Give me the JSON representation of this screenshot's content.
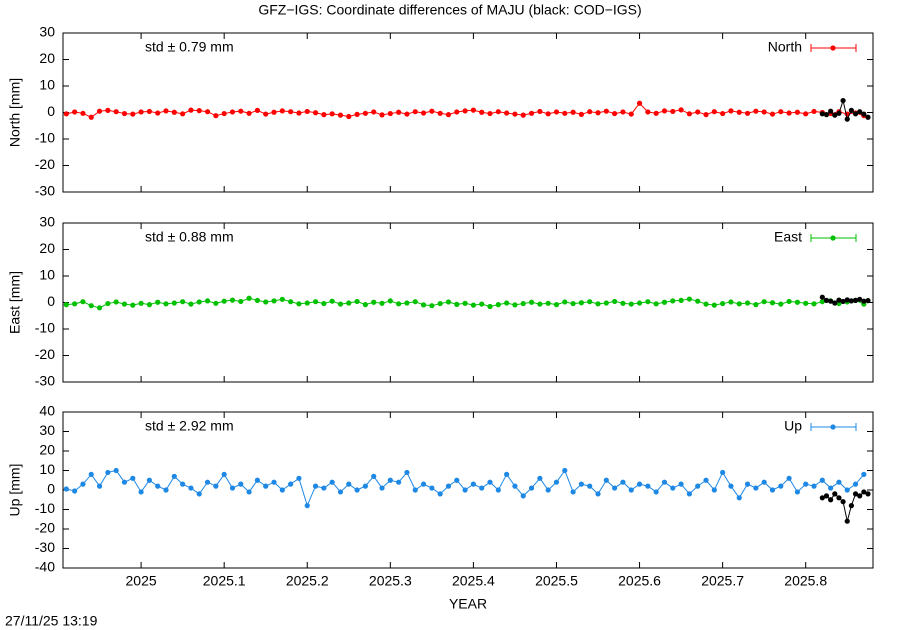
{
  "title": "GFZ−IGS: Coordinate differences of MAJU (black: COD−IGS)",
  "footer": "27/11/25 13:19",
  "chart_data": [
    {
      "type": "line",
      "ylabel": "North [mm]",
      "annotation": "std ± 0.79 mm",
      "xlim": [
        2024.906,
        2025.881
      ],
      "xticks": [
        2025,
        2025.1,
        2025.2,
        2025.3,
        2025.4,
        2025.5,
        2025.6,
        2025.7,
        2025.8
      ],
      "show_xtick_labels": false,
      "ylim": [
        -30,
        30
      ],
      "yticks": [
        -30,
        -20,
        -10,
        0,
        10,
        20,
        30
      ],
      "x": [
        2024.91,
        2024.92,
        2024.93,
        2024.94,
        2024.95,
        2024.96,
        2024.97,
        2024.98,
        2024.99,
        2025,
        2025.01,
        2025.02,
        2025.03,
        2025.04,
        2025.05,
        2025.06,
        2025.07,
        2025.08,
        2025.09,
        2025.1,
        2025.11,
        2025.12,
        2025.13,
        2025.14,
        2025.15,
        2025.16,
        2025.17,
        2025.18,
        2025.19,
        2025.2,
        2025.21,
        2025.22,
        2025.23,
        2025.24,
        2025.25,
        2025.26,
        2025.27,
        2025.28,
        2025.29,
        2025.3,
        2025.31,
        2025.32,
        2025.33,
        2025.34,
        2025.35,
        2025.36,
        2025.37,
        2025.38,
        2025.39,
        2025.4,
        2025.41,
        2025.42,
        2025.43,
        2025.44,
        2025.45,
        2025.46,
        2025.47,
        2025.48,
        2025.49,
        2025.5,
        2025.51,
        2025.52,
        2025.53,
        2025.54,
        2025.55,
        2025.56,
        2025.57,
        2025.58,
        2025.59,
        2025.6,
        2025.61,
        2025.62,
        2025.63,
        2025.64,
        2025.65,
        2025.66,
        2025.67,
        2025.68,
        2025.69,
        2025.7,
        2025.71,
        2025.72,
        2025.73,
        2025.74,
        2025.75,
        2025.76,
        2025.77,
        2025.78,
        2025.79,
        2025.8,
        2025.81,
        2025.82,
        2025.83,
        2025.84,
        2025.85,
        2025.86,
        2025.87
      ],
      "series": [
        {
          "name": "North",
          "color": "#ff0000",
          "values": [
            -0.5,
            0.2,
            -0.3,
            -1.8,
            0.5,
            0.8,
            0.3,
            -0.4,
            -0.6,
            0.2,
            0.4,
            -0.2,
            0.6,
            0.1,
            -0.5,
            0.9,
            0.7,
            0.3,
            -1.2,
            -0.4,
            0.2,
            0.5,
            -0.3,
            0.8,
            -0.6,
            0.1,
            0.6,
            0.3,
            -0.2,
            0.4,
            -0.1,
            -0.8,
            -0.5,
            -1.0,
            -1.5,
            -0.7,
            -0.3,
            0.2,
            -0.9,
            -0.4,
            0.1,
            -0.6,
            0.3,
            -0.2,
            0.5,
            -0.3,
            -0.8,
            0.2,
            0.6,
            0.9,
            0.1,
            -0.4,
            0.3,
            -0.2,
            -0.6,
            -1.0,
            -0.3,
            0.4,
            -0.5,
            0.2,
            -0.3,
            0.1,
            -0.7,
            0.3,
            -0.1,
            0.5,
            -0.4,
            0.2,
            -0.6,
            3.5,
            0.2,
            -0.3,
            0.6,
            0.4,
            1.0,
            -0.5,
            0.2,
            -0.8,
            0.3,
            -0.4,
            0.6,
            0.1,
            -0.3,
            0.5,
            0.2,
            -0.6,
            0.3,
            -0.2,
            0.1,
            -0.5,
            0.4,
            0.0,
            -0.4,
            0.3,
            -0.6,
            -0.2,
            -1.2
          ]
        },
        {
          "color": "#000000",
          "x": [
            2025.82,
            2025.825,
            2025.83,
            2025.835,
            2025.84,
            2025.845,
            2025.85,
            2025.855,
            2025.86,
            2025.865,
            2025.87,
            2025.875
          ],
          "values": [
            -0.5,
            -0.8,
            0.5,
            -1.0,
            -0.3,
            4.5,
            -2.5,
            0.8,
            -0.5,
            0.3,
            -0.6,
            -1.8
          ]
        }
      ]
    },
    {
      "type": "line",
      "ylabel": "East [mm]",
      "annotation": "std ± 0.88 mm",
      "xlim": [
        2024.906,
        2025.881
      ],
      "xticks": [
        2025,
        2025.1,
        2025.2,
        2025.3,
        2025.4,
        2025.5,
        2025.6,
        2025.7,
        2025.8
      ],
      "show_xtick_labels": false,
      "ylim": [
        -30,
        30
      ],
      "yticks": [
        -30,
        -20,
        -10,
        0,
        10,
        20,
        30
      ],
      "x": [
        2024.91,
        2024.92,
        2024.93,
        2024.94,
        2024.95,
        2024.96,
        2024.97,
        2024.98,
        2024.99,
        2025,
        2025.01,
        2025.02,
        2025.03,
        2025.04,
        2025.05,
        2025.06,
        2025.07,
        2025.08,
        2025.09,
        2025.1,
        2025.11,
        2025.12,
        2025.13,
        2025.14,
        2025.15,
        2025.16,
        2025.17,
        2025.18,
        2025.19,
        2025.2,
        2025.21,
        2025.22,
        2025.23,
        2025.24,
        2025.25,
        2025.26,
        2025.27,
        2025.28,
        2025.29,
        2025.3,
        2025.31,
        2025.32,
        2025.33,
        2025.34,
        2025.35,
        2025.36,
        2025.37,
        2025.38,
        2025.39,
        2025.4,
        2025.41,
        2025.42,
        2025.43,
        2025.44,
        2025.45,
        2025.46,
        2025.47,
        2025.48,
        2025.49,
        2025.5,
        2025.51,
        2025.52,
        2025.53,
        2025.54,
        2025.55,
        2025.56,
        2025.57,
        2025.58,
        2025.59,
        2025.6,
        2025.61,
        2025.62,
        2025.63,
        2025.64,
        2025.65,
        2025.66,
        2025.67,
        2025.68,
        2025.69,
        2025.7,
        2025.71,
        2025.72,
        2025.73,
        2025.74,
        2025.75,
        2025.76,
        2025.77,
        2025.78,
        2025.79,
        2025.8,
        2025.81,
        2025.82,
        2025.83,
        2025.84,
        2025.85,
        2025.86,
        2025.87
      ],
      "series": [
        {
          "name": "East",
          "color": "#00c000",
          "values": [
            -0.8,
            -0.5,
            0.3,
            -1.2,
            -2.0,
            -0.4,
            0.2,
            -0.6,
            -1.0,
            -0.3,
            -0.8,
            0.1,
            -0.5,
            -0.2,
            0.3,
            -0.6,
            0.2,
            0.6,
            -0.3,
            0.5,
            0.9,
            0.4,
            1.6,
            0.8,
            0.2,
            0.6,
            1.2,
            0.3,
            -0.5,
            -0.2,
            0.3,
            -0.4,
            0.5,
            -0.6,
            -0.2,
            0.4,
            -0.8,
            0.1,
            -0.3,
            0.6,
            -0.5,
            -0.2,
            0.3,
            -0.9,
            -1.2,
            -0.4,
            0.2,
            -0.7,
            -0.3,
            -1.0,
            -0.6,
            -1.5,
            -0.8,
            -0.2,
            -0.9,
            -0.4,
            0.1,
            -0.6,
            -0.3,
            -0.8,
            0.2,
            -0.4,
            -0.1,
            0.3,
            -0.5,
            -0.2,
            0.4,
            -0.3,
            -0.6,
            -0.2,
            0.3,
            -0.5,
            0.1,
            0.6,
            0.8,
            1.3,
            0.5,
            -0.6,
            -1.0,
            -0.4,
            0.2,
            -0.5,
            -0.2,
            -0.8,
            0.3,
            -0.1,
            -0.6,
            0.4,
            0.1,
            -0.3,
            -0.5,
            0.3,
            0.6,
            -0.4,
            0.2,
            0.8,
            -0.6
          ]
        },
        {
          "color": "#000000",
          "x": [
            2025.82,
            2025.825,
            2025.83,
            2025.835,
            2025.84,
            2025.845,
            2025.85,
            2025.855,
            2025.86,
            2025.865,
            2025.87,
            2025.875
          ],
          "values": [
            2.0,
            0.8,
            0.5,
            -0.2,
            0.9,
            0.4,
            1.0,
            0.6,
            0.8,
            1.2,
            0.5,
            0.7
          ]
        }
      ]
    },
    {
      "type": "line",
      "ylabel": "Up [mm]",
      "annotation": "std ± 2.92 mm",
      "xlabel": "YEAR",
      "xlim": [
        2024.906,
        2025.881
      ],
      "xticks": [
        2025,
        2025.1,
        2025.2,
        2025.3,
        2025.4,
        2025.5,
        2025.6,
        2025.7,
        2025.8
      ],
      "show_xtick_labels": true,
      "ylim": [
        -40,
        40
      ],
      "yticks": [
        -40,
        -30,
        -20,
        -10,
        0,
        10,
        20,
        30,
        40
      ],
      "x": [
        2024.91,
        2024.92,
        2024.93,
        2024.94,
        2024.95,
        2024.96,
        2024.97,
        2024.98,
        2024.99,
        2025,
        2025.01,
        2025.02,
        2025.03,
        2025.04,
        2025.05,
        2025.06,
        2025.07,
        2025.08,
        2025.09,
        2025.1,
        2025.11,
        2025.12,
        2025.13,
        2025.14,
        2025.15,
        2025.16,
        2025.17,
        2025.18,
        2025.19,
        2025.2,
        2025.21,
        2025.22,
        2025.23,
        2025.24,
        2025.25,
        2025.26,
        2025.27,
        2025.28,
        2025.29,
        2025.3,
        2025.31,
        2025.32,
        2025.33,
        2025.34,
        2025.35,
        2025.36,
        2025.37,
        2025.38,
        2025.39,
        2025.4,
        2025.41,
        2025.42,
        2025.43,
        2025.44,
        2025.45,
        2025.46,
        2025.47,
        2025.48,
        2025.49,
        2025.5,
        2025.51,
        2025.52,
        2025.53,
        2025.54,
        2025.55,
        2025.56,
        2025.57,
        2025.58,
        2025.59,
        2025.6,
        2025.61,
        2025.62,
        2025.63,
        2025.64,
        2025.65,
        2025.66,
        2025.67,
        2025.68,
        2025.69,
        2025.7,
        2025.71,
        2025.72,
        2025.73,
        2025.74,
        2025.75,
        2025.76,
        2025.77,
        2025.78,
        2025.79,
        2025.8,
        2025.81,
        2025.82,
        2025.83,
        2025.84,
        2025.85,
        2025.86,
        2025.87
      ],
      "series": [
        {
          "name": "Up",
          "color": "#1e88e5",
          "values": [
            0.5,
            -0.5,
            3,
            8,
            2,
            9,
            10,
            4,
            6,
            -1,
            5,
            2,
            0,
            7,
            3,
            1,
            -2,
            4,
            2,
            8,
            1,
            3,
            -1,
            5,
            2,
            4,
            0,
            3,
            6,
            -8,
            2,
            1,
            4,
            -1,
            3,
            0,
            2,
            7,
            1,
            5,
            4,
            9,
            0,
            3,
            1,
            -2,
            2,
            5,
            0,
            3,
            1,
            4,
            0,
            8,
            2,
            -3,
            1,
            6,
            0,
            4,
            10,
            -1,
            3,
            2,
            -2,
            5,
            1,
            4,
            0,
            3,
            2,
            -1,
            4,
            1,
            3,
            -2,
            2,
            5,
            0,
            9,
            2,
            -4,
            3,
            1,
            4,
            0,
            2,
            6,
            -1,
            3,
            2,
            5,
            1,
            4,
            0,
            3,
            8
          ]
        },
        {
          "color": "#000000",
          "x": [
            2025.82,
            2025.825,
            2025.83,
            2025.835,
            2025.84,
            2025.845,
            2025.85,
            2025.855,
            2025.86,
            2025.865,
            2025.87,
            2025.875
          ],
          "values": [
            -4,
            -3,
            -5,
            -2,
            -4,
            -6,
            -16,
            -8,
            -2,
            -3,
            -1,
            -2
          ]
        }
      ]
    }
  ]
}
